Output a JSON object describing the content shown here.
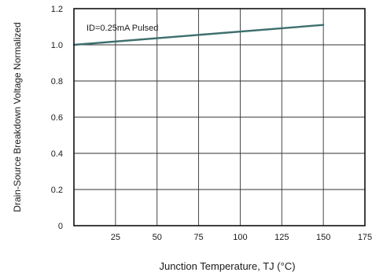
{
  "chart_data": {
    "type": "line",
    "title": "",
    "xlabel": "Junction Temperature, TJ (°C)",
    "ylabel": "Drain-Source Breakdown Voltage Normalized",
    "xlim": [
      0,
      175
    ],
    "ylim": [
      0,
      1.2
    ],
    "x_ticks": [
      25,
      50,
      75,
      100,
      125,
      150,
      175
    ],
    "x_tick_labels": [
      "25",
      "50",
      "75",
      "100",
      "125",
      "150",
      "175"
    ],
    "y_ticks": [
      0,
      0.2,
      0.4,
      0.6,
      0.8,
      1.0,
      1.2
    ],
    "y_tick_labels": [
      "0",
      "0.2",
      "0.4",
      "0.6",
      "0.8",
      "1.0",
      "1.2"
    ],
    "grid": true,
    "annotation": "ID=0.25mA Pulsed",
    "series": [
      {
        "color": "#3d6f6e",
        "x": [
          0,
          150
        ],
        "y": [
          1.0,
          1.11
        ]
      }
    ],
    "colors": {
      "line": "#3d6f6e",
      "grid": "#333333",
      "frame": "#111111"
    }
  }
}
